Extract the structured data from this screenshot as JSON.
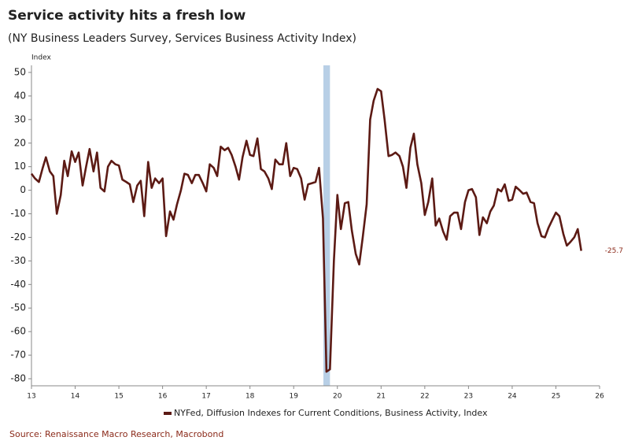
{
  "chart_data": {
    "type": "line",
    "title": "Service activity hits a fresh low",
    "subtitle": "(NY Business Leaders Survey, Services Business Activity Index)",
    "y_label": "Index",
    "source": "Source: Renaissance Macro Research, Macrobond",
    "x": [
      13,
      13.08,
      13.17,
      13.25,
      13.33,
      13.42,
      13.5,
      13.58,
      13.67,
      13.75,
      13.83,
      13.92,
      14,
      14.08,
      14.17,
      14.25,
      14.33,
      14.42,
      14.5,
      14.58,
      14.67,
      14.75,
      14.83,
      14.92,
      15,
      15.08,
      15.17,
      15.25,
      15.33,
      15.42,
      15.5,
      15.58,
      15.67,
      15.75,
      15.83,
      15.92,
      16,
      16.08,
      16.17,
      16.25,
      16.33,
      16.42,
      16.5,
      16.58,
      16.67,
      16.75,
      16.83,
      16.92,
      17,
      17.08,
      17.17,
      17.25,
      17.33,
      17.42,
      17.5,
      17.58,
      17.67,
      17.75,
      17.83,
      17.92,
      18,
      18.08,
      18.17,
      18.25,
      18.33,
      18.42,
      18.5,
      18.58,
      18.67,
      18.75,
      18.83,
      18.92,
      19,
      19.08,
      19.17,
      19.25,
      19.33,
      19.42,
      19.5,
      19.58,
      19.67,
      19.75,
      19.83,
      19.92,
      20,
      20.08,
      20.17,
      20.25,
      20.33,
      20.42,
      20.5,
      20.58,
      20.67,
      20.75,
      20.83,
      20.92,
      21,
      21.08,
      21.17,
      21.25,
      21.33,
      21.42,
      21.5,
      21.58,
      21.67,
      21.75,
      21.83,
      21.92,
      22,
      22.08,
      22.17,
      22.25,
      22.33,
      22.42,
      22.5,
      22.58,
      22.67,
      22.75,
      22.83,
      22.92,
      23,
      23.08,
      23.17,
      23.25,
      23.33,
      23.42,
      23.5,
      23.58,
      23.67,
      23.75,
      23.83,
      23.92,
      24,
      24.08,
      24.17,
      24.25,
      24.33,
      24.42,
      24.5,
      24.58,
      24.67,
      24.75,
      24.83,
      24.92,
      25,
      25.08,
      25.17,
      25.25,
      25.33,
      25.42,
      25.5,
      25.58
    ],
    "series": [
      {
        "name": "NYFed, Diffusion Indexes for Current Conditions, Business Activity, Index",
        "color": "#5c1a14",
        "values": [
          7,
          5,
          3.5,
          9,
          14,
          8,
          6,
          -10,
          -2,
          12.5,
          6,
          16.5,
          12,
          16,
          2,
          10,
          17.5,
          8,
          16,
          1,
          -0.5,
          10,
          12.5,
          11,
          10.5,
          4.5,
          3.5,
          2.5,
          -5,
          2,
          4,
          -11,
          12,
          1,
          5,
          3,
          5,
          -19.5,
          -9,
          -12.5,
          -6,
          0,
          7,
          6.5,
          3,
          6.5,
          6.5,
          3,
          -0.5,
          11,
          9.5,
          6,
          18.5,
          17,
          18,
          15,
          10,
          4.5,
          14,
          21,
          15,
          14.5,
          22,
          9,
          8,
          5,
          0.5,
          13,
          11,
          11,
          20,
          6,
          9.5,
          9,
          5,
          -4,
          2.5,
          3,
          3.5,
          9.5,
          -12,
          -77,
          -76,
          -30,
          -2,
          -16.5,
          -5.5,
          -5,
          -17,
          -27,
          -31.5,
          -20,
          -6,
          30,
          38,
          43,
          42,
          30,
          14.5,
          15,
          16,
          14.5,
          10,
          1,
          18,
          24,
          11,
          3,
          -10.5,
          -5,
          5,
          -15,
          -12,
          -17.5,
          -21,
          -11,
          -9.5,
          -9.5,
          -16.5,
          -5,
          0,
          0.5,
          -3,
          -19,
          -11.5,
          -14,
          -9,
          -6.5,
          0.5,
          -0.5,
          2.5,
          -4.5,
          -4,
          1.5,
          0,
          -1.5,
          -1,
          -5,
          -5.5,
          -14,
          -19.5,
          -20,
          -16,
          -12.5,
          -9.5,
          -11,
          -18.5,
          -23.5,
          -22,
          -20,
          -16.5,
          -25.7
        ]
      }
    ],
    "highlight_band": {
      "x": [
        19.68,
        19.83
      ],
      "color": "#b8cfe6"
    },
    "xlim": [
      13,
      26
    ],
    "xticks": [
      13,
      14,
      15,
      16,
      17,
      18,
      19,
      20,
      21,
      22,
      23,
      24,
      25,
      26
    ],
    "ylim": [
      -83,
      53
    ],
    "yticks": [
      50,
      40,
      30,
      20,
      10,
      0,
      -10,
      -20,
      -30,
      -40,
      -50,
      -60,
      -70,
      -80
    ]
  }
}
